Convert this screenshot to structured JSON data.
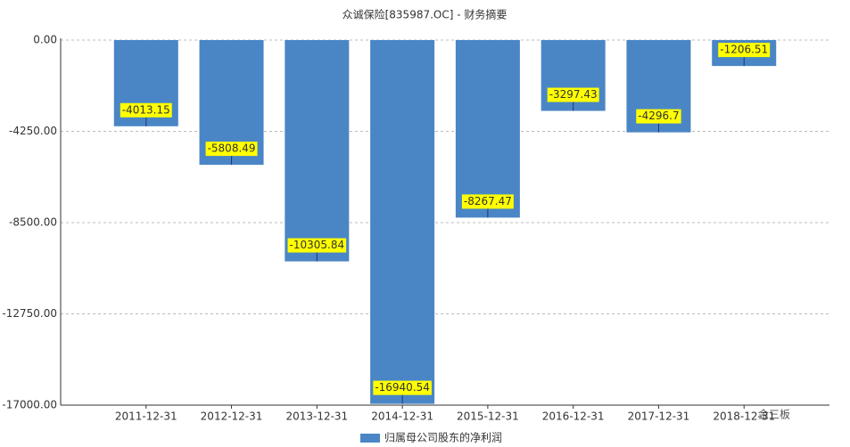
{
  "chart_data": {
    "type": "bar",
    "title": "众诚保险[835987.OC] - 财务摘要",
    "categories": [
      "2011-12-31",
      "2012-12-31",
      "2013-12-31",
      "2014-12-31",
      "2015-12-31",
      "2016-12-31",
      "2017-12-31",
      "2018-12-31"
    ],
    "series": [
      {
        "name": "归属母公司股东的净利润",
        "color": "#4a86c5",
        "values": [
          -4013.15,
          -5808.49,
          -10305.84,
          -16940.54,
          -8267.47,
          -3297.43,
          -4296.7,
          -1206.51
        ]
      }
    ],
    "ylim": [
      -17000,
      0
    ],
    "yticks": [
      {
        "value": 0,
        "label": "0.00"
      },
      {
        "value": -4250,
        "label": "-4250.00"
      },
      {
        "value": -8500,
        "label": "-8500.00"
      },
      {
        "value": -12750,
        "label": "-12750.00"
      },
      {
        "value": -17000,
        "label": "-17000.00"
      }
    ],
    "grid": true,
    "label_color": "#ffff00",
    "watermark": "金三板"
  }
}
